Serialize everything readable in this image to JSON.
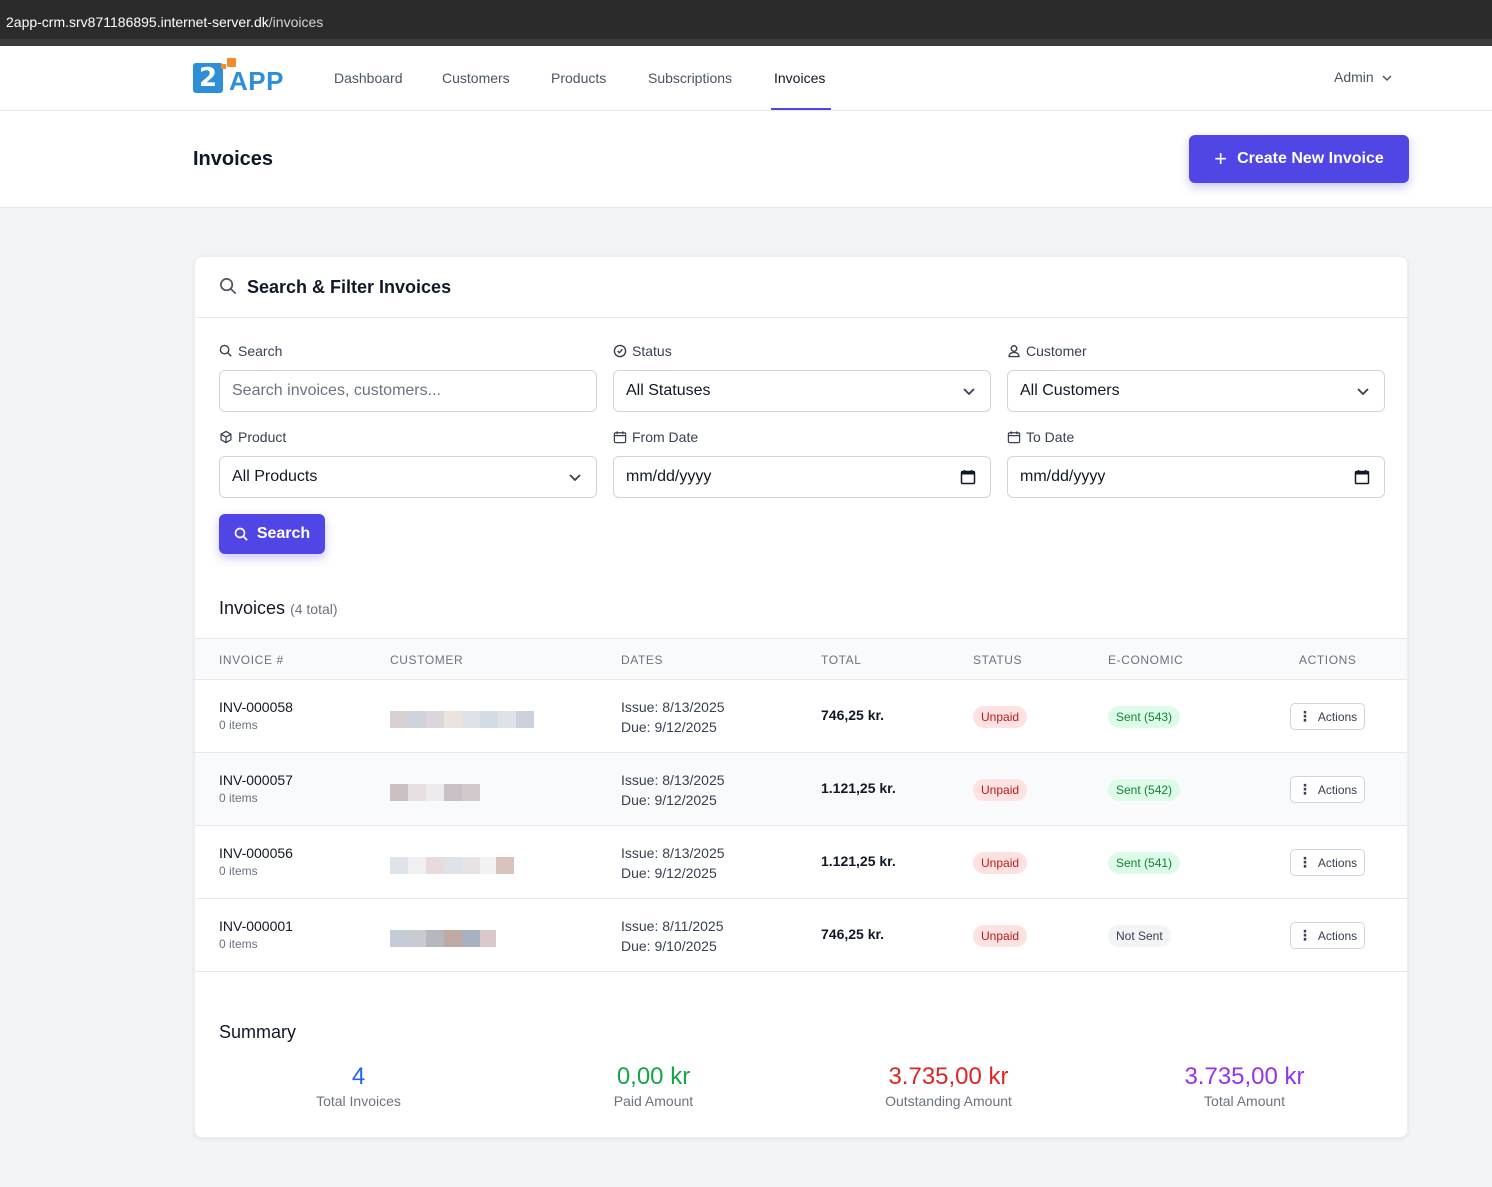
{
  "browser": {
    "url_host": "2app-crm.srv871186895.internet-server.dk",
    "url_path": "/invoices"
  },
  "logo": {
    "mark": "2",
    "word": "APP"
  },
  "nav": {
    "links": [
      "Dashboard",
      "Customers",
      "Products",
      "Subscriptions",
      "Invoices"
    ],
    "active": "Invoices",
    "user": "Admin"
  },
  "page": {
    "title": "Invoices",
    "create_button": "Create New Invoice"
  },
  "filters": {
    "title": "Search & Filter Invoices",
    "search_label": "Search",
    "search_placeholder": "Search invoices, customers...",
    "status_label": "Status",
    "status_value": "All Statuses",
    "customer_label": "Customer",
    "customer_value": "All Customers",
    "product_label": "Product",
    "product_value": "All Products",
    "from_label": "From Date",
    "from_value": "mm/dd/yyyy",
    "to_label": "To Date",
    "to_value": "mm/dd/yyyy",
    "search_button": "Search"
  },
  "invoices": {
    "title": "Invoices",
    "count": "(4 total)",
    "columns": [
      "INVOICE #",
      "CUSTOMER",
      "DATES",
      "TOTAL",
      "STATUS",
      "E-CONOMIC",
      "ACTIONS"
    ],
    "rows": [
      {
        "number": "INV-000058",
        "items": "0 items",
        "issue": "Issue: 8/13/2025",
        "due": "Due: 9/12/2025",
        "total": "746,25 kr.",
        "status": "Unpaid",
        "economic": "Sent (543)",
        "economic_state": "sent",
        "action": "Actions"
      },
      {
        "number": "INV-000057",
        "items": "0 items",
        "issue": "Issue: 8/13/2025",
        "due": "Due: 9/12/2025",
        "total": "1.121,25 kr.",
        "status": "Unpaid",
        "economic": "Sent (542)",
        "economic_state": "sent",
        "action": "Actions"
      },
      {
        "number": "INV-000056",
        "items": "0 items",
        "issue": "Issue: 8/13/2025",
        "due": "Due: 9/12/2025",
        "total": "1.121,25 kr.",
        "status": "Unpaid",
        "economic": "Sent (541)",
        "economic_state": "sent",
        "action": "Actions"
      },
      {
        "number": "INV-000001",
        "items": "0 items",
        "issue": "Issue: 8/11/2025",
        "due": "Due: 9/10/2025",
        "total": "746,25 kr.",
        "status": "Unpaid",
        "economic": "Not Sent",
        "economic_state": "not-sent",
        "action": "Actions"
      }
    ]
  },
  "summary": {
    "title": "Summary",
    "stats": [
      {
        "value": "4",
        "label": "Total Invoices",
        "color": "#2563eb"
      },
      {
        "value": "0,00 kr",
        "label": "Paid Amount",
        "color": "#16a34a"
      },
      {
        "value": "3.735,00 kr",
        "label": "Outstanding Amount",
        "color": "#dc2626"
      },
      {
        "value": "3.735,00 kr",
        "label": "Total Amount",
        "color": "#9333ea"
      }
    ]
  },
  "colors": {
    "accent": "#4f46e5"
  }
}
